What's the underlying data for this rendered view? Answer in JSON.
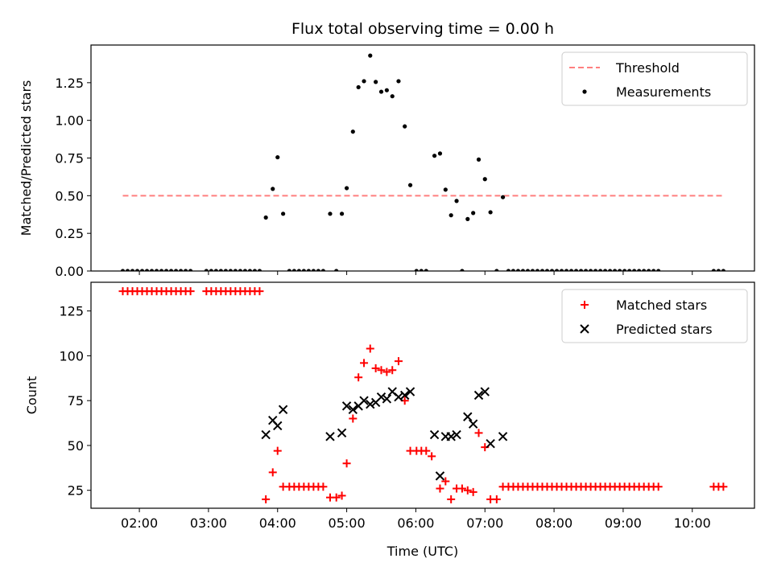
{
  "chart_data": {
    "title": "Flux total observing time = 0.00 h",
    "xlabel": "Time (UTC)",
    "x_unit": "hours UTC",
    "xlim": [
      1.3,
      10.9
    ],
    "x_ticks": [
      2,
      3,
      4,
      5,
      6,
      7,
      8,
      9,
      10
    ],
    "x_tick_labels": [
      "02:00",
      "03:00",
      "04:00",
      "05:00",
      "06:00",
      "07:00",
      "08:00",
      "09:00",
      "10:00"
    ],
    "panels": [
      {
        "id": "top",
        "type": "scatter",
        "ylabel": "Matched/Predicted stars",
        "ylim": [
          0,
          1.5
        ],
        "y_ticks": [
          0,
          0.25,
          0.5,
          0.75,
          1.0,
          1.25
        ],
        "y_tick_labels": [
          "0.00",
          "0.25",
          "0.50",
          "0.75",
          "1.00",
          "1.25"
        ],
        "legend": {
          "position": "top-right",
          "entries": [
            {
              "label": "Threshold",
              "style": "dashed-line",
              "color": "#ff7f7f"
            },
            {
              "label": "Measurements",
              "style": "dot",
              "color": "#000000"
            }
          ]
        },
        "threshold": {
          "y": 0.5,
          "x_range": [
            1.76,
            10.47
          ]
        },
        "measurements": [
          [
            1.76,
            0
          ],
          [
            1.83,
            0
          ],
          [
            1.9,
            0
          ],
          [
            1.97,
            0
          ],
          [
            2.04,
            0
          ],
          [
            2.11,
            0
          ],
          [
            2.18,
            0
          ],
          [
            2.25,
            0
          ],
          [
            2.32,
            0
          ],
          [
            2.39,
            0
          ],
          [
            2.46,
            0
          ],
          [
            2.53,
            0
          ],
          [
            2.6,
            0
          ],
          [
            2.67,
            0
          ],
          [
            2.74,
            0
          ],
          [
            2.97,
            0
          ],
          [
            3.04,
            0
          ],
          [
            3.11,
            0
          ],
          [
            3.18,
            0
          ],
          [
            3.25,
            0
          ],
          [
            3.32,
            0
          ],
          [
            3.39,
            0
          ],
          [
            3.46,
            0
          ],
          [
            3.53,
            0
          ],
          [
            3.6,
            0
          ],
          [
            3.67,
            0
          ],
          [
            3.74,
            0
          ],
          [
            3.83,
            0.355
          ],
          [
            3.93,
            0.545
          ],
          [
            4.0,
            0.755
          ],
          [
            4.08,
            0.38
          ],
          [
            4.17,
            0
          ],
          [
            4.24,
            0
          ],
          [
            4.31,
            0
          ],
          [
            4.38,
            0
          ],
          [
            4.45,
            0
          ],
          [
            4.52,
            0
          ],
          [
            4.59,
            0
          ],
          [
            4.66,
            0
          ],
          [
            4.76,
            0.38
          ],
          [
            4.85,
            0
          ],
          [
            4.93,
            0.38
          ],
          [
            5.0,
            0.55
          ],
          [
            5.09,
            0.925
          ],
          [
            5.17,
            1.22
          ],
          [
            5.25,
            1.26
          ],
          [
            5.34,
            1.43
          ],
          [
            5.42,
            1.255
          ],
          [
            5.5,
            1.19
          ],
          [
            5.58,
            1.2
          ],
          [
            5.66,
            1.16
          ],
          [
            5.75,
            1.26
          ],
          [
            5.84,
            0.96
          ],
          [
            5.92,
            0.57
          ],
          [
            6.01,
            0
          ],
          [
            6.08,
            0
          ],
          [
            6.15,
            0
          ],
          [
            6.27,
            0.765
          ],
          [
            6.35,
            0.78
          ],
          [
            6.43,
            0.54
          ],
          [
            6.51,
            0.37
          ],
          [
            6.59,
            0.465
          ],
          [
            6.67,
            0
          ],
          [
            6.75,
            0.345
          ],
          [
            6.83,
            0.385
          ],
          [
            6.91,
            0.74
          ],
          [
            7.0,
            0.61
          ],
          [
            7.08,
            0.39
          ],
          [
            7.17,
            0
          ],
          [
            7.26,
            0.49
          ],
          [
            7.34,
            0
          ],
          [
            7.41,
            0
          ],
          [
            7.48,
            0
          ],
          [
            7.55,
            0
          ],
          [
            7.62,
            0
          ],
          [
            7.69,
            0
          ],
          [
            7.76,
            0
          ],
          [
            7.83,
            0
          ],
          [
            7.9,
            0
          ],
          [
            7.97,
            0
          ],
          [
            8.04,
            0
          ],
          [
            8.11,
            0
          ],
          [
            8.18,
            0
          ],
          [
            8.25,
            0
          ],
          [
            8.32,
            0
          ],
          [
            8.39,
            0
          ],
          [
            8.46,
            0
          ],
          [
            8.53,
            0
          ],
          [
            8.6,
            0
          ],
          [
            8.67,
            0
          ],
          [
            8.74,
            0
          ],
          [
            8.81,
            0
          ],
          [
            8.88,
            0
          ],
          [
            8.95,
            0
          ],
          [
            9.02,
            0
          ],
          [
            9.09,
            0
          ],
          [
            9.16,
            0
          ],
          [
            9.23,
            0
          ],
          [
            9.3,
            0
          ],
          [
            9.37,
            0
          ],
          [
            9.44,
            0
          ],
          [
            9.51,
            0
          ],
          [
            10.31,
            0
          ],
          [
            10.38,
            0
          ],
          [
            10.45,
            0
          ]
        ]
      },
      {
        "id": "bottom",
        "type": "scatter",
        "ylabel": "Count",
        "ylim": [
          15,
          141
        ],
        "y_ticks": [
          25,
          50,
          75,
          100,
          125
        ],
        "y_tick_labels": [
          "25",
          "50",
          "75",
          "100",
          "125"
        ],
        "legend": {
          "position": "top-right",
          "entries": [
            {
              "label": "Matched stars",
              "style": "plus",
              "color": "#ff0000"
            },
            {
              "label": "Predicted stars",
              "style": "x",
              "color": "#000000"
            }
          ]
        },
        "matched": [
          [
            1.76,
            136
          ],
          [
            1.83,
            136
          ],
          [
            1.9,
            136
          ],
          [
            1.97,
            136
          ],
          [
            2.04,
            136
          ],
          [
            2.11,
            136
          ],
          [
            2.18,
            136
          ],
          [
            2.25,
            136
          ],
          [
            2.32,
            136
          ],
          [
            2.39,
            136
          ],
          [
            2.46,
            136
          ],
          [
            2.53,
            136
          ],
          [
            2.6,
            136
          ],
          [
            2.67,
            136
          ],
          [
            2.74,
            136
          ],
          [
            2.97,
            136
          ],
          [
            3.04,
            136
          ],
          [
            3.11,
            136
          ],
          [
            3.18,
            136
          ],
          [
            3.25,
            136
          ],
          [
            3.32,
            136
          ],
          [
            3.39,
            136
          ],
          [
            3.46,
            136
          ],
          [
            3.53,
            136
          ],
          [
            3.6,
            136
          ],
          [
            3.67,
            136
          ],
          [
            3.74,
            136
          ],
          [
            3.83,
            20
          ],
          [
            3.93,
            35
          ],
          [
            4.0,
            47
          ],
          [
            4.08,
            27
          ],
          [
            4.17,
            27
          ],
          [
            4.24,
            27
          ],
          [
            4.31,
            27
          ],
          [
            4.38,
            27
          ],
          [
            4.45,
            27
          ],
          [
            4.52,
            27
          ],
          [
            4.59,
            27
          ],
          [
            4.66,
            27
          ],
          [
            4.76,
            21
          ],
          [
            4.85,
            21
          ],
          [
            4.93,
            22
          ],
          [
            5.0,
            40
          ],
          [
            5.09,
            65
          ],
          [
            5.17,
            88
          ],
          [
            5.25,
            96
          ],
          [
            5.34,
            104
          ],
          [
            5.42,
            93
          ],
          [
            5.5,
            92
          ],
          [
            5.58,
            91
          ],
          [
            5.66,
            92
          ],
          [
            5.75,
            97
          ],
          [
            5.84,
            75
          ],
          [
            5.92,
            47
          ],
          [
            6.01,
            47
          ],
          [
            6.08,
            47
          ],
          [
            6.15,
            47
          ],
          [
            6.23,
            44
          ],
          [
            6.35,
            26
          ],
          [
            6.43,
            30
          ],
          [
            6.51,
            20
          ],
          [
            6.59,
            26
          ],
          [
            6.67,
            26
          ],
          [
            6.75,
            25
          ],
          [
            6.83,
            24
          ],
          [
            6.91,
            57
          ],
          [
            7.0,
            49
          ],
          [
            7.08,
            20
          ],
          [
            7.17,
            20
          ],
          [
            7.26,
            27
          ],
          [
            7.34,
            27
          ],
          [
            7.41,
            27
          ],
          [
            7.48,
            27
          ],
          [
            7.55,
            27
          ],
          [
            7.62,
            27
          ],
          [
            7.69,
            27
          ],
          [
            7.76,
            27
          ],
          [
            7.83,
            27
          ],
          [
            7.9,
            27
          ],
          [
            7.97,
            27
          ],
          [
            8.04,
            27
          ],
          [
            8.11,
            27
          ],
          [
            8.18,
            27
          ],
          [
            8.25,
            27
          ],
          [
            8.32,
            27
          ],
          [
            8.39,
            27
          ],
          [
            8.46,
            27
          ],
          [
            8.53,
            27
          ],
          [
            8.6,
            27
          ],
          [
            8.67,
            27
          ],
          [
            8.74,
            27
          ],
          [
            8.81,
            27
          ],
          [
            8.88,
            27
          ],
          [
            8.95,
            27
          ],
          [
            9.02,
            27
          ],
          [
            9.09,
            27
          ],
          [
            9.16,
            27
          ],
          [
            9.23,
            27
          ],
          [
            9.3,
            27
          ],
          [
            9.37,
            27
          ],
          [
            9.44,
            27
          ],
          [
            9.51,
            27
          ],
          [
            10.31,
            27
          ],
          [
            10.38,
            27
          ],
          [
            10.45,
            27
          ]
        ],
        "predicted": [
          [
            3.83,
            56
          ],
          [
            3.93,
            64
          ],
          [
            4.0,
            61
          ],
          [
            4.08,
            70
          ],
          [
            4.76,
            55
          ],
          [
            4.93,
            57
          ],
          [
            5.0,
            72
          ],
          [
            5.09,
            70
          ],
          [
            5.17,
            72
          ],
          [
            5.25,
            75
          ],
          [
            5.34,
            73
          ],
          [
            5.42,
            74
          ],
          [
            5.5,
            77
          ],
          [
            5.58,
            76
          ],
          [
            5.66,
            80
          ],
          [
            5.75,
            77
          ],
          [
            5.84,
            78
          ],
          [
            5.92,
            80
          ],
          [
            6.27,
            56
          ],
          [
            6.35,
            33
          ],
          [
            6.43,
            55
          ],
          [
            6.51,
            55
          ],
          [
            6.59,
            56
          ],
          [
            6.75,
            66
          ],
          [
            6.83,
            62
          ],
          [
            6.91,
            78
          ],
          [
            7.0,
            80
          ],
          [
            7.08,
            51
          ],
          [
            7.26,
            55
          ]
        ]
      }
    ]
  }
}
